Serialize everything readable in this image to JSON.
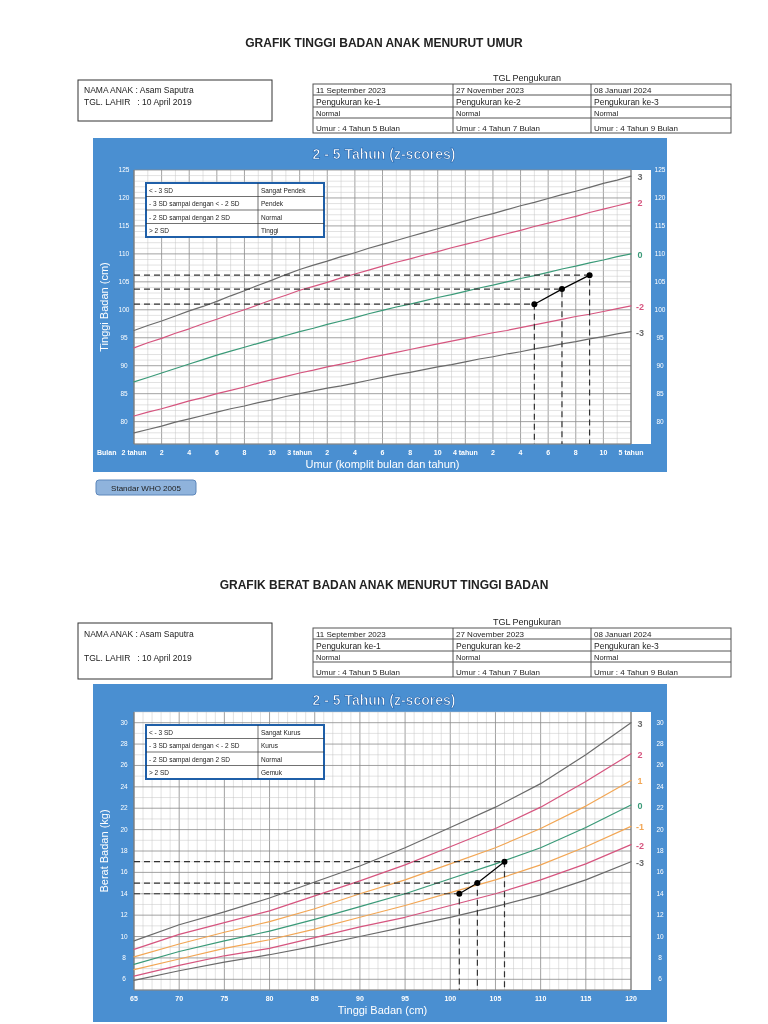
{
  "chart_data": [
    {
      "type": "line",
      "title": "GRAFIK TINGGI BADAN ANAK MENURUT UMUR",
      "subtitle": "2 - 5 Tahun (z-scores)",
      "xlabel": "Umur (komplit bulan dan tahun)",
      "ylabel": "Tinggi Badan (cm)",
      "annotations": [
        "NAMA ANAK : Asam Saputra",
        "TGL. LAHIR   : 10 April 2019",
        "TGL Pengukuran",
        "11 September 2023",
        "27 November 2023",
        "08 Januari 2024",
        "Pengukuran ke-1",
        "Pengukuran ke-2",
        "Pengukuran ke-3",
        "Normal",
        "Normal",
        "Normal",
        "Umur : 4 Tahun 5 Bulan",
        "Umur : 4 Tahun 7 Bulan",
        "Umur : 4 Tahun 9 Bulan",
        "< - 3 SD",
        "Sangat Pendek",
        "- 3 SD sampai dengan < - 2 SD",
        "Pendek",
        "- 2 SD sampai dengan 2 SD",
        "Normal",
        "> 2 SD",
        "Tinggi",
        "Bulan",
        "Standar WHO 2005"
      ],
      "categories": [
        "2 tahun",
        null,
        "2",
        null,
        "4",
        null,
        "6",
        null,
        "8",
        null,
        "10",
        null,
        "3 tahun",
        null,
        "2",
        null,
        "4",
        null,
        "6",
        null,
        "8",
        null,
        "10",
        null,
        "4 tahun",
        null,
        "2",
        null,
        "4",
        null,
        "6",
        null,
        "8",
        null,
        "10",
        null,
        "5 tahun"
      ],
      "series": [
        {
          "name": "3",
          "color": "#6b6b6b",
          "values": [
            96.3,
            97.2,
            98.0,
            98.9,
            99.8,
            100.6,
            101.5,
            102.5,
            103.4,
            104.4,
            105.3,
            106.3,
            107.2,
            108.0,
            108.7,
            109.5,
            110.2,
            111.0,
            111.7,
            112.4,
            113.1,
            113.8,
            114.5,
            115.2,
            115.9,
            116.6,
            117.2,
            117.9,
            118.6,
            119.2,
            119.9,
            120.6,
            121.2,
            121.9,
            122.6,
            123.2,
            123.9
          ]
        },
        {
          "name": "2",
          "color": "#d6557f",
          "values": [
            93.2,
            94.1,
            94.9,
            95.8,
            96.6,
            97.5,
            98.3,
            99.2,
            100.0,
            100.9,
            101.8,
            102.6,
            103.5,
            104.2,
            104.9,
            105.7,
            106.4,
            107.1,
            107.8,
            108.5,
            109.1,
            109.8,
            110.4,
            111.1,
            111.7,
            112.3,
            113.0,
            113.6,
            114.2,
            114.9,
            115.5,
            116.1,
            116.7,
            117.4,
            118.0,
            118.6,
            119.2
          ]
        },
        {
          "name": "0",
          "color": "#3a9a78",
          "values": [
            87.1,
            87.9,
            88.7,
            89.5,
            90.3,
            91.1,
            91.9,
            92.6,
            93.3,
            94.0,
            94.7,
            95.4,
            96.1,
            96.7,
            97.4,
            98.0,
            98.6,
            99.3,
            99.9,
            100.5,
            101.0,
            101.6,
            102.2,
            102.7,
            103.3,
            103.9,
            104.4,
            105.0,
            105.6,
            106.1,
            106.7,
            107.3,
            107.8,
            108.4,
            108.9,
            109.5,
            110.0
          ]
        },
        {
          "name": "-2",
          "color": "#d6557f",
          "values": [
            81.0,
            81.7,
            82.3,
            83.0,
            83.7,
            84.3,
            85.0,
            85.6,
            86.2,
            86.9,
            87.5,
            88.1,
            88.7,
            89.2,
            89.8,
            90.3,
            90.8,
            91.4,
            91.9,
            92.4,
            92.9,
            93.4,
            93.9,
            94.4,
            94.9,
            95.4,
            95.9,
            96.3,
            96.8,
            97.3,
            97.8,
            98.3,
            98.8,
            99.2,
            99.7,
            100.2,
            100.7
          ]
        },
        {
          "name": "-3",
          "color": "#6b6b6b",
          "values": [
            78.0,
            78.6,
            79.2,
            79.9,
            80.5,
            81.1,
            81.7,
            82.3,
            82.8,
            83.4,
            83.9,
            84.5,
            85.0,
            85.5,
            86.0,
            86.4,
            86.9,
            87.4,
            87.9,
            88.4,
            88.8,
            89.3,
            89.8,
            90.2,
            90.7,
            91.2,
            91.6,
            92.1,
            92.5,
            93.0,
            93.4,
            93.9,
            94.3,
            94.8,
            95.2,
            95.7,
            96.1
          ]
        },
        {
          "color": "#000000",
          "values": [
            null,
            null,
            null,
            null,
            null,
            null,
            null,
            null,
            null,
            null,
            null,
            null,
            null,
            null,
            null,
            null,
            null,
            null,
            null,
            null,
            null,
            null,
            null,
            null,
            null,
            null,
            null,
            null,
            null,
            101,
            null,
            103.7,
            null,
            106.2,
            null,
            null,
            null
          ],
          "marker": "circle"
        }
      ],
      "ref_lines": [
        {
          "axis": "y",
          "value": 101,
          "color": "#333333",
          "line_style": "dashed"
        },
        {
          "axis": "y",
          "value": 103.7,
          "color": "#333333",
          "line_style": "dashed"
        },
        {
          "axis": "y",
          "value": 106.2,
          "color": "#333333",
          "line_style": "dashed"
        }
      ],
      "ylim": [
        76,
        125
      ],
      "yticks": [
        {
          "value": 76,
          "label": null
        },
        {
          "value": 77,
          "label": null
        },
        {
          "value": 78,
          "label": null
        },
        {
          "value": 79,
          "label": null
        },
        80,
        {
          "value": 81,
          "label": null
        },
        {
          "value": 82,
          "label": null
        },
        {
          "value": 83,
          "label": null
        },
        {
          "value": 84,
          "label": null
        },
        85,
        {
          "value": 86,
          "label": null
        },
        {
          "value": 87,
          "label": null
        },
        {
          "value": 88,
          "label": null
        },
        {
          "value": 89,
          "label": null
        },
        90,
        {
          "value": 91,
          "label": null
        },
        {
          "value": 92,
          "label": null
        },
        {
          "value": 93,
          "label": null
        },
        {
          "value": 94,
          "label": null
        },
        95,
        {
          "value": 96,
          "label": null
        },
        {
          "value": 97,
          "label": null
        },
        {
          "value": 98,
          "label": null
        },
        {
          "value": 99,
          "label": null
        },
        100,
        {
          "value": 101,
          "label": null
        },
        {
          "value": 102,
          "label": null
        },
        {
          "value": 103,
          "label": null
        },
        {
          "value": 104,
          "label": null
        },
        105,
        {
          "value": 106,
          "label": null
        },
        {
          "value": 107,
          "label": null
        },
        {
          "value": 108,
          "label": null
        },
        {
          "value": 109,
          "label": null
        },
        110,
        {
          "value": 111,
          "label": null
        },
        {
          "value": 112,
          "label": null
        },
        {
          "value": 113,
          "label": null
        },
        {
          "value": 114,
          "label": null
        },
        115,
        {
          "value": 116,
          "label": null
        },
        {
          "value": 117,
          "label": null
        },
        {
          "value": 118,
          "label": null
        },
        {
          "value": 119,
          "label": null
        },
        120,
        {
          "value": 121,
          "label": null
        },
        {
          "value": 122,
          "label": null
        },
        {
          "value": 123,
          "label": null
        },
        {
          "value": 124,
          "label": null
        },
        125
      ],
      "y2lim": [
        76,
        125
      ],
      "y2ticks": [
        80,
        85,
        90,
        95,
        100,
        105,
        110,
        115,
        120,
        125
      ],
      "grid": true,
      "line_style": "solid",
      "marker": "none"
    },
    {
      "type": "line",
      "title": "GRAFIK BERAT BADAN ANAK MENURUT TINGGI BADAN",
      "subtitle": "2 - 5 Tahun (z-scores)",
      "xlabel": "Tinggi Badan (cm)",
      "ylabel": "Berat Badan (kg)",
      "annotations": [
        "NAMA ANAK : Asam Saputra",
        "TGL. LAHIR   : 10 April 2019",
        "TGL Pengukuran",
        "11 September 2023",
        "27 November 2023",
        "08 Januari 2024",
        "Pengukuran ke-1",
        "Pengukuran ke-2",
        "Pengukuran ke-3",
        "Normal",
        "Normal",
        "Normal",
        "Umur : 4 Tahun 5 Bulan",
        "Umur : 4 Tahun 7 Bulan",
        "Umur : 4 Tahun 9 Bulan",
        "< - 3 SD",
        "Sangat Kurus",
        "- 3 SD sampai dengan < - 2 SD",
        "Kurus",
        "- 2 SD sampai dengan 2 SD",
        "Normal",
        "> 2 SD",
        "Gemuk"
      ],
      "x": [
        65,
        70,
        75,
        80,
        85,
        90,
        95,
        100,
        105,
        110,
        115,
        120
      ],
      "series": [
        {
          "name": "3",
          "color": "#6b6b6b",
          "values": [
            9.6,
            11.1,
            12.3,
            13.6,
            15.1,
            16.6,
            18.3,
            20.2,
            22.1,
            24.3,
            27.0,
            30.0
          ]
        },
        {
          "name": "2",
          "color": "#d6557f",
          "values": [
            8.8,
            10.2,
            11.3,
            12.4,
            13.8,
            15.2,
            16.7,
            18.4,
            20.1,
            22.1,
            24.5,
            27.1
          ]
        },
        {
          "name": "1",
          "color": "#f2a654",
          "values": [
            8.1,
            9.3,
            10.4,
            11.4,
            12.6,
            14.0,
            15.3,
            16.8,
            18.3,
            20.1,
            22.2,
            24.6
          ]
        },
        {
          "name": "0",
          "color": "#3a9a78",
          "values": [
            7.4,
            8.6,
            9.6,
            10.5,
            11.6,
            12.8,
            14.0,
            15.4,
            16.8,
            18.3,
            20.2,
            22.3
          ]
        },
        {
          "name": "-1",
          "color": "#f2a654",
          "values": [
            6.9,
            7.9,
            8.9,
            9.7,
            10.7,
            11.8,
            12.9,
            14.1,
            15.3,
            16.7,
            18.4,
            20.3
          ]
        },
        {
          "name": "-2",
          "color": "#d6557f",
          "values": [
            6.3,
            7.3,
            8.2,
            8.9,
            9.9,
            10.9,
            11.8,
            12.9,
            14.0,
            15.3,
            16.8,
            18.6
          ]
        },
        {
          "name": "-3",
          "color": "#6b6b6b",
          "values": [
            5.9,
            6.8,
            7.6,
            8.3,
            9.1,
            10.0,
            10.9,
            11.8,
            12.8,
            13.9,
            15.3,
            17.0
          ]
        },
        {
          "color": "#000000",
          "x": [
            101,
            103,
            106
          ],
          "values": [
            14,
            15,
            17
          ],
          "marker": "circle"
        }
      ],
      "ref_lines": [
        {
          "axis": "y",
          "value": 14,
          "color": "#333333",
          "line_style": "dashed"
        },
        {
          "axis": "y",
          "value": 15,
          "color": "#333333",
          "line_style": "dashed"
        },
        {
          "axis": "y",
          "value": 17,
          "color": "#333333",
          "line_style": "dashed"
        }
      ],
      "xlim": [
        65,
        120
      ],
      "xticks": [
        65,
        {
          "value": 66,
          "label": null
        },
        {
          "value": 67,
          "label": null
        },
        {
          "value": 68,
          "label": null
        },
        {
          "value": 69,
          "label": null
        },
        70,
        {
          "value": 71,
          "label": null
        },
        {
          "value": 72,
          "label": null
        },
        {
          "value": 73,
          "label": null
        },
        {
          "value": 74,
          "label": null
        },
        75,
        {
          "value": 76,
          "label": null
        },
        {
          "value": 77,
          "label": null
        },
        {
          "value": 78,
          "label": null
        },
        {
          "value": 79,
          "label": null
        },
        80,
        {
          "value": 81,
          "label": null
        },
        {
          "value": 82,
          "label": null
        },
        {
          "value": 83,
          "label": null
        },
        {
          "value": 84,
          "label": null
        },
        85,
        {
          "value": 86,
          "label": null
        },
        {
          "value": 87,
          "label": null
        },
        {
          "value": 88,
          "label": null
        },
        {
          "value": 89,
          "label": null
        },
        90,
        {
          "value": 91,
          "label": null
        },
        {
          "value": 92,
          "label": null
        },
        {
          "value": 93,
          "label": null
        },
        {
          "value": 94,
          "label": null
        },
        95,
        {
          "value": 96,
          "label": null
        },
        {
          "value": 97,
          "label": null
        },
        {
          "value": 98,
          "label": null
        },
        {
          "value": 99,
          "label": null
        },
        100,
        {
          "value": 101,
          "label": null
        },
        {
          "value": 102,
          "label": null
        },
        {
          "value": 103,
          "label": null
        },
        {
          "value": 104,
          "label": null
        },
        105,
        {
          "value": 106,
          "label": null
        },
        {
          "value": 107,
          "label": null
        },
        {
          "value": 108,
          "label": null
        },
        {
          "value": 109,
          "label": null
        },
        110,
        {
          "value": 111,
          "label": null
        },
        {
          "value": 112,
          "label": null
        },
        {
          "value": 113,
          "label": null
        },
        {
          "value": 114,
          "label": null
        },
        115,
        {
          "value": 116,
          "label": null
        },
        {
          "value": 117,
          "label": null
        },
        {
          "value": 118,
          "label": null
        },
        {
          "value": 119,
          "label": null
        },
        120
      ],
      "ylim": [
        5,
        31
      ],
      "yticks": [
        {
          "value": 5,
          "label": null
        },
        6,
        {
          "value": 7,
          "label": null
        },
        8,
        {
          "value": 9,
          "label": null
        },
        10,
        {
          "value": 11,
          "label": null
        },
        12,
        {
          "value": 13,
          "label": null
        },
        14,
        {
          "value": 15,
          "label": null
        },
        16,
        {
          "value": 17,
          "label": null
        },
        18,
        {
          "value": 19,
          "label": null
        },
        20,
        {
          "value": 21,
          "label": null
        },
        22,
        {
          "value": 23,
          "label": null
        },
        24,
        {
          "value": 25,
          "label": null
        },
        26,
        {
          "value": 27,
          "label": null
        },
        28,
        {
          "value": 29,
          "label": null
        },
        30,
        {
          "value": 31,
          "label": null
        }
      ],
      "y2lim": [
        5,
        31
      ],
      "y2ticks": [
        6,
        8,
        10,
        12,
        14,
        16,
        18,
        20,
        22,
        24,
        26,
        28,
        30
      ],
      "grid": true,
      "line_style": "solid",
      "marker": "none"
    }
  ]
}
